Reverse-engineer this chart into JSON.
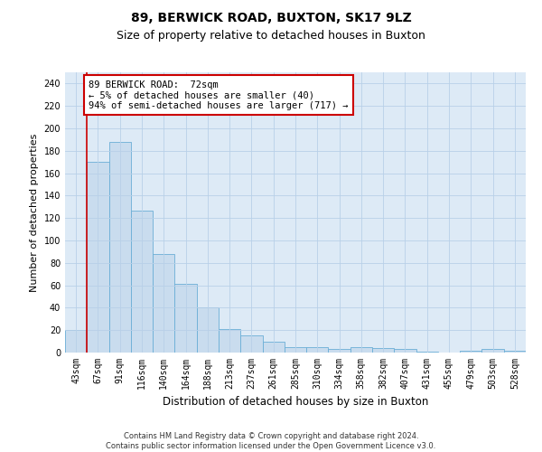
{
  "title1": "89, BERWICK ROAD, BUXTON, SK17 9LZ",
  "title2": "Size of property relative to detached houses in Buxton",
  "xlabel": "Distribution of detached houses by size in Buxton",
  "ylabel": "Number of detached properties",
  "categories": [
    "43sqm",
    "67sqm",
    "91sqm",
    "116sqm",
    "140sqm",
    "164sqm",
    "188sqm",
    "213sqm",
    "237sqm",
    "261sqm",
    "285sqm",
    "310sqm",
    "334sqm",
    "358sqm",
    "382sqm",
    "407sqm",
    "431sqm",
    "455sqm",
    "479sqm",
    "503sqm",
    "528sqm"
  ],
  "values": [
    20,
    170,
    188,
    127,
    88,
    61,
    40,
    21,
    15,
    10,
    5,
    5,
    3,
    5,
    4,
    3,
    1,
    0,
    2,
    3,
    2
  ],
  "bar_color": "#c9dcee",
  "bar_edge_color": "#6aaed6",
  "grid_color": "#b8d0e8",
  "background_color": "#ddeaf6",
  "vline_color": "#cc0000",
  "annotation_text": "89 BERWICK ROAD:  72sqm\n← 5% of detached houses are smaller (40)\n94% of semi-detached houses are larger (717) →",
  "annotation_box_color": "#ffffff",
  "annotation_box_edge": "#cc0000",
  "ylim": [
    0,
    250
  ],
  "yticks": [
    0,
    20,
    40,
    60,
    80,
    100,
    120,
    140,
    160,
    180,
    200,
    220,
    240
  ],
  "footnote": "Contains HM Land Registry data © Crown copyright and database right 2024.\nContains public sector information licensed under the Open Government Licence v3.0.",
  "title1_fontsize": 10,
  "title2_fontsize": 9,
  "xlabel_fontsize": 8.5,
  "ylabel_fontsize": 8,
  "tick_fontsize": 7,
  "annotation_fontsize": 7.5,
  "footnote_fontsize": 6
}
